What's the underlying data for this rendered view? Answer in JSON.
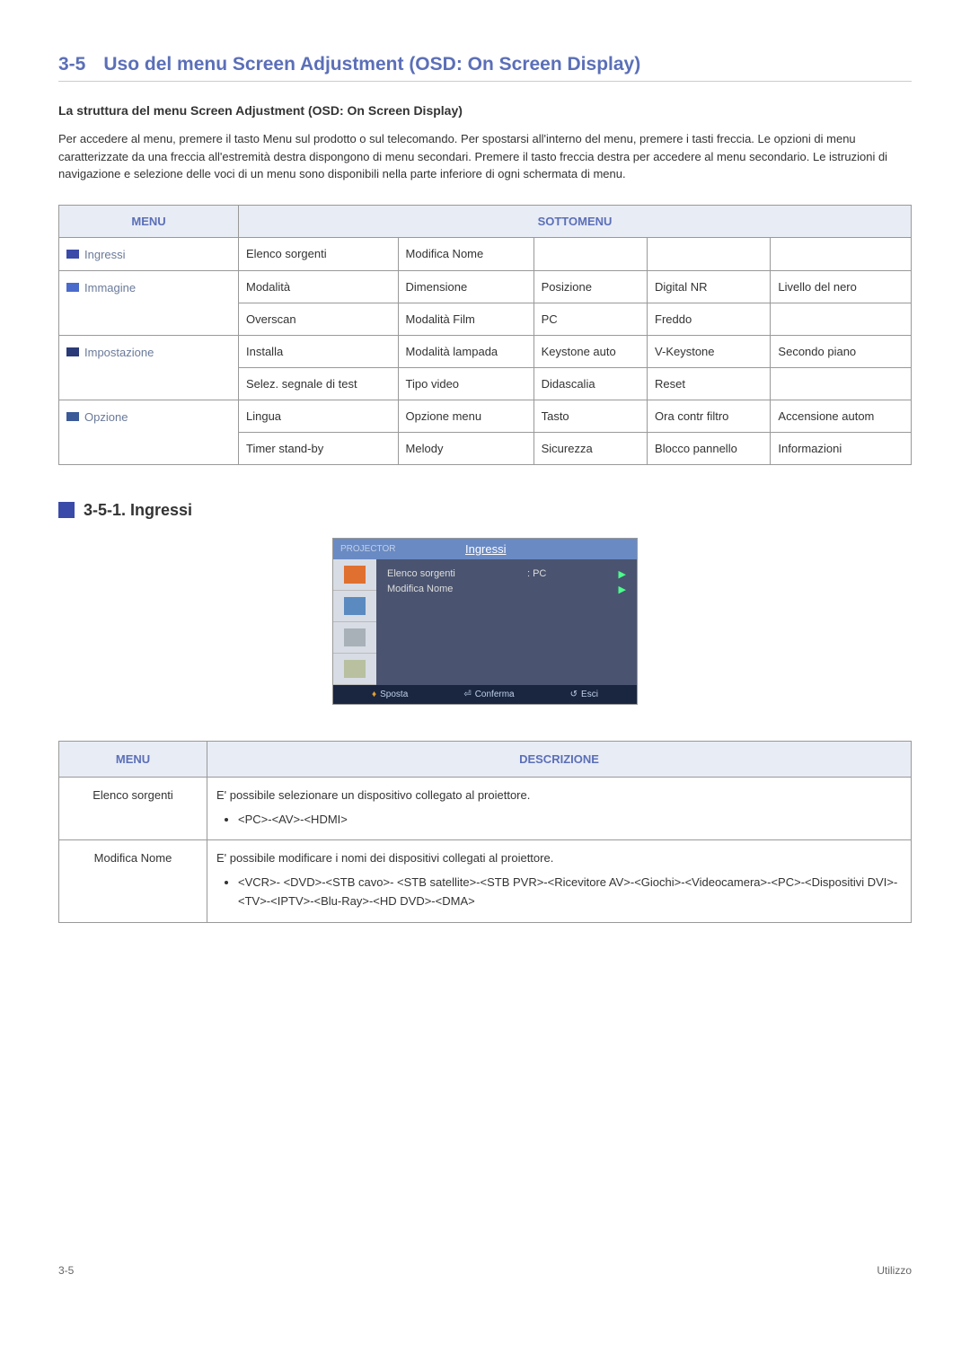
{
  "section": {
    "number": "3-5",
    "title": "Uso del menu Screen Adjustment (OSD: On Screen Display)"
  },
  "subheading": "La struttura del menu Screen Adjustment (OSD: On Screen Display)",
  "paragraph": "Per accedere al menu, premere il tasto Menu sul prodotto o sul telecomando. Per spostarsi all'interno del menu, premere i tasti freccia. Le opzioni di menu caratterizzate da una freccia all'estremità destra dispongono di menu secondari. Premere il tasto freccia destra per accedere al menu secondario. Le istruzioni di navigazione e selezione delle voci di un menu sono disponibili nella parte inferiore di ogni schermata di menu.",
  "menuTable": {
    "headers": {
      "menu": "MENU",
      "sottomenu": "SOTTOMENU"
    },
    "rows": [
      {
        "label": "Ingressi",
        "icon": "icon-ingressi",
        "cells": [
          [
            "Elenco sorgenti",
            "Modifica Nome",
            "",
            "",
            ""
          ]
        ]
      },
      {
        "label": "Immagine",
        "icon": "icon-immagine",
        "cells": [
          [
            "Modalità",
            "Dimensione",
            "Posizione",
            "Digital NR",
            "Livello del nero"
          ],
          [
            "Overscan",
            "Modalità Film",
            "PC",
            "Freddo",
            ""
          ]
        ]
      },
      {
        "label": "Impostazione",
        "icon": "icon-impostazione",
        "cells": [
          [
            "Installa",
            "Modalità lampada",
            "Keystone auto",
            "V-Keystone",
            "Secondo piano"
          ],
          [
            "Selez. segnale di test",
            "Tipo video",
            "Didascalia",
            "Reset",
            ""
          ]
        ]
      },
      {
        "label": "Opzione",
        "icon": "icon-opzione",
        "cells": [
          [
            "Lingua",
            "Opzione menu",
            "Tasto",
            "Ora contr filtro",
            "Accensione autom"
          ],
          [
            "Timer stand-by",
            "Melody",
            "Sicurezza",
            "Blocco pannello",
            "Informazioni"
          ]
        ]
      }
    ]
  },
  "subSection": {
    "title": "3-5-1. Ingressi"
  },
  "osd": {
    "projector": "PROJECTOR",
    "topTitle": "Ingressi",
    "item1": "Elenco sorgenti",
    "item1Val": ": PC",
    "item2": "Modifica Nome",
    "bottom": {
      "sposta": "Sposta",
      "conferma": "Conferma",
      "esci": "Esci"
    },
    "sidebarIcons": [
      {
        "bg": "#e07030"
      },
      {
        "bg": "#5a8ac0"
      },
      {
        "bg": "#a8b0b8"
      },
      {
        "bg": "#b8c0a0"
      }
    ]
  },
  "descTable": {
    "headers": {
      "menu": "MENU",
      "desc": "DESCRIZIONE"
    },
    "rows": [
      {
        "name": "Elenco sorgenti",
        "desc": "E' possibile selezionare un dispositivo collegato al proiettore.",
        "bullets": [
          "<PC>-<AV>-<HDMI>"
        ]
      },
      {
        "name": "Modifica Nome",
        "desc": "E' possibile modificare i nomi dei dispositivi collegati al proiettore.",
        "bullets": [
          "<VCR>- <DVD>-<STB cavo>- <STB satellite>-<STB PVR>-<Ricevitore AV>-<Giochi>-<Videocamera>-<PC>-<Dispositivi DVI>-<TV>-<IPTV>-<Blu-Ray>-<HD DVD>-<DMA>"
        ]
      }
    ]
  },
  "footer": {
    "left": "3-5",
    "right": "Utilizzo"
  }
}
